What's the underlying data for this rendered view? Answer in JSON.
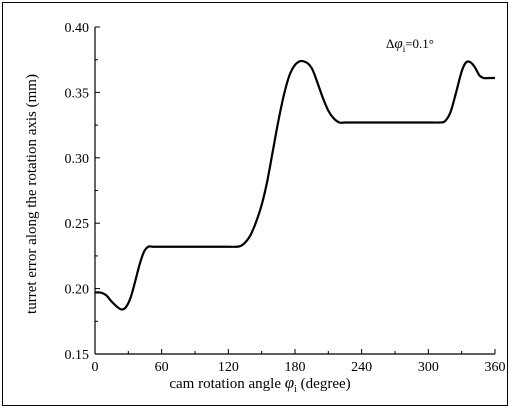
{
  "chart_data": {
    "type": "line",
    "xlabel_prefix": "cam rotation angle ",
    "xlabel_symbol": "φ",
    "xlabel_sub": "i",
    "xlabel_suffix": " (degree)",
    "ylabel": "turret error along the rotation axis (mm)",
    "annotation": {
      "prefix": "Δ",
      "symbol": "φ",
      "sub": "i",
      "suffix": "=0.1°"
    },
    "xlim": [
      0,
      360
    ],
    "ylim": [
      0.15,
      0.4
    ],
    "xticks": [
      "0",
      "60",
      "120",
      "180",
      "240",
      "300",
      "360"
    ],
    "yticks": [
      "0.15",
      "0.20",
      "0.25",
      "0.30",
      "0.35",
      "0.40"
    ],
    "grid": false,
    "series": [
      {
        "color": "#000000",
        "x": [
          0,
          5,
          10,
          15,
          20,
          24,
          28,
          32,
          36,
          40,
          44,
          48,
          52,
          56,
          60,
          70,
          80,
          90,
          100,
          110,
          120,
          128,
          132,
          136,
          140,
          145,
          150,
          155,
          160,
          165,
          170,
          175,
          180,
          185,
          190,
          193,
          196,
          200,
          205,
          210,
          215,
          220,
          225,
          230,
          240,
          250,
          260,
          270,
          280,
          290,
          300,
          310,
          315,
          320,
          325,
          330,
          334,
          338,
          342,
          346,
          350,
          355,
          360
        ],
        "y": [
          0.197,
          0.197,
          0.195,
          0.19,
          0.186,
          0.184,
          0.186,
          0.193,
          0.205,
          0.218,
          0.228,
          0.232,
          0.232,
          0.232,
          0.232,
          0.232,
          0.232,
          0.232,
          0.232,
          0.232,
          0.232,
          0.232,
          0.233,
          0.236,
          0.241,
          0.251,
          0.264,
          0.282,
          0.305,
          0.328,
          0.348,
          0.363,
          0.371,
          0.374,
          0.373,
          0.371,
          0.367,
          0.358,
          0.346,
          0.336,
          0.33,
          0.327,
          0.327,
          0.327,
          0.327,
          0.327,
          0.327,
          0.327,
          0.327,
          0.327,
          0.327,
          0.327,
          0.328,
          0.335,
          0.35,
          0.366,
          0.373,
          0.373,
          0.369,
          0.363,
          0.361,
          0.361,
          0.361
        ]
      }
    ]
  }
}
